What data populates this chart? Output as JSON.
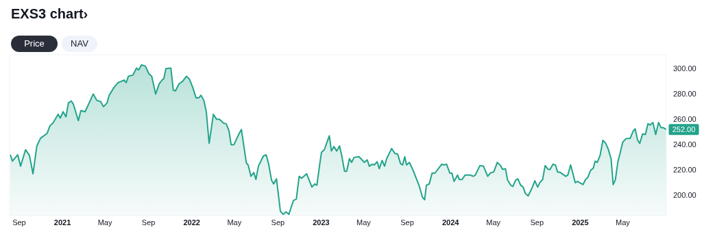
{
  "chart_data": {
    "type": "area",
    "title": "EXS3 chart›",
    "annotations": [
      "Price",
      "NAV",
      {
        "text": "252.00",
        "x": "2025-08-31",
        "y": 252
      }
    ],
    "x": [
      "2020-08-07",
      "2020-08-13",
      "2020-08-28",
      "2020-09-05",
      "2020-09-19",
      "2020-09-30",
      "2020-10-10",
      "2020-10-21",
      "2020-10-31",
      "2020-11-19",
      "2020-11-27",
      "2020-12-05",
      "2020-12-20",
      "2020-12-26",
      "2021-01-03",
      "2021-01-11",
      "2021-01-18",
      "2021-01-26",
      "2021-02-01",
      "2021-02-15",
      "2021-02-22",
      "2021-03-06",
      "2021-03-29",
      "2021-04-08",
      "2021-04-19",
      "2021-04-27",
      "2021-05-07",
      "2021-05-13",
      "2021-05-26",
      "2021-06-07",
      "2021-06-16",
      "2021-06-24",
      "2021-06-30",
      "2021-07-06",
      "2021-07-19",
      "2021-07-29",
      "2021-08-04",
      "2021-08-12",
      "2021-08-23",
      "2021-09-02",
      "2021-09-10",
      "2021-09-21",
      "2021-10-01",
      "2021-10-09",
      "2021-10-14",
      "2021-10-20",
      "2021-11-03",
      "2021-11-10",
      "2021-11-16",
      "2021-11-26",
      "2021-12-06",
      "2021-12-17",
      "2021-12-25",
      "2022-01-04",
      "2022-01-13",
      "2022-01-21",
      "2022-01-27",
      "2022-02-04",
      "2022-02-11",
      "2022-02-19",
      "2022-03-03",
      "2022-03-12",
      "2022-03-20",
      "2022-04-01",
      "2022-04-08",
      "2022-04-16",
      "2022-04-22",
      "2022-04-30",
      "2022-05-15",
      "2022-05-21",
      "2022-06-04",
      "2022-06-09",
      "2022-06-17",
      "2022-06-25",
      "2022-07-01",
      "2022-07-08",
      "2022-07-22",
      "2022-07-30",
      "2022-08-06",
      "2022-08-14",
      "2022-08-20",
      "2022-08-28",
      "2022-09-08",
      "2022-09-16",
      "2022-09-24",
      "2022-10-02",
      "2022-10-15",
      "2022-10-23",
      "2022-10-31",
      "2022-11-07",
      "2022-11-21",
      "2022-12-06",
      "2022-12-14",
      "2022-12-20",
      "2022-12-28",
      "2023-01-02",
      "2023-01-10",
      "2023-01-24",
      "2023-01-30",
      "2023-02-06",
      "2023-02-14",
      "2023-02-22",
      "2023-02-28",
      "2023-03-08",
      "2023-03-14",
      "2023-03-22",
      "2023-03-28",
      "2023-04-04",
      "2023-04-18",
      "2023-05-03",
      "2023-05-11",
      "2023-05-17",
      "2023-05-25",
      "2023-05-31",
      "2023-06-08",
      "2023-06-14",
      "2023-06-22",
      "2023-06-29",
      "2023-07-05",
      "2023-07-19",
      "2023-07-28",
      "2023-08-05",
      "2023-08-13",
      "2023-08-19",
      "2023-08-25",
      "2023-08-30",
      "2023-09-07",
      "2023-09-17",
      "2023-10-04",
      "2023-10-14",
      "2023-10-20",
      "2023-10-25",
      "2023-11-02",
      "2023-11-10",
      "2023-11-18",
      "2023-12-07",
      "2023-12-13",
      "2023-12-21",
      "2023-12-30",
      "2024-01-05",
      "2024-01-11",
      "2024-01-21",
      "2024-01-26",
      "2024-02-03",
      "2024-02-11",
      "2024-02-19",
      "2024-02-26",
      "2024-03-05",
      "2024-03-11",
      "2024-03-24",
      "2024-04-03",
      "2024-04-15",
      "2024-04-22",
      "2024-05-02",
      "2024-05-12",
      "2024-05-21",
      "2024-05-27",
      "2024-06-04",
      "2024-06-10",
      "2024-06-19",
      "2024-06-25",
      "2024-07-03",
      "2024-07-09",
      "2024-07-17",
      "2024-07-24",
      "2024-07-30",
      "2024-08-07",
      "2024-08-15",
      "2024-08-20",
      "2024-08-26",
      "2024-09-03",
      "2024-09-09",
      "2024-09-17",
      "2024-09-24",
      "2024-10-02",
      "2024-10-08",
      "2024-10-16",
      "2024-10-23",
      "2024-10-29",
      "2024-11-06",
      "2024-11-21",
      "2024-11-27",
      "2024-12-05",
      "2024-12-18",
      "2024-12-24",
      "2025-01-09",
      "2025-01-16",
      "2025-01-22",
      "2025-01-30",
      "2025-02-07",
      "2025-02-12",
      "2025-02-18",
      "2025-02-26",
      "2025-03-06",
      "2025-03-14",
      "2025-03-21",
      "2025-03-29",
      "2025-04-04",
      "2025-04-10",
      "2025-04-17",
      "2025-04-25",
      "2025-05-01",
      "2025-05-09",
      "2025-05-16",
      "2025-05-22",
      "2025-05-30",
      "2025-06-05",
      "2025-06-12",
      "2025-06-18",
      "2025-06-26",
      "2025-07-04",
      "2025-07-11",
      "2025-07-17",
      "2025-07-25",
      "2025-08-02",
      "2025-08-10",
      "2025-08-17",
      "2025-08-23",
      "2025-08-31"
    ],
    "series": [
      {
        "color": "#22a38a",
        "values": [
          232,
          227,
          232,
          223,
          236,
          231.5,
          217,
          239,
          245,
          249,
          255,
          257,
          264,
          261,
          266,
          262,
          273,
          274.5,
          272,
          259,
          267,
          266,
          280,
          275,
          274,
          270,
          273,
          279,
          285,
          289,
          290,
          291,
          289,
          294,
          295,
          300.5,
          299,
          303,
          302,
          296,
          294,
          280,
          288,
          291,
          292,
          300,
          300.5,
          283,
          282.5,
          288,
          290,
          294,
          292,
          285,
          277,
          277,
          279,
          275,
          266,
          241,
          264,
          260,
          260,
          257,
          256.5,
          251,
          240,
          240,
          249,
          252,
          225.5,
          224,
          215,
          218,
          212.5,
          223,
          231,
          232,
          224.5,
          212,
          209,
          213,
          187.5,
          185,
          187,
          185,
          196,
          197,
          215,
          213.5,
          217,
          206.5,
          209,
          208,
          224.5,
          234,
          236,
          247,
          235,
          238.5,
          235,
          239,
          231.5,
          219,
          219,
          229,
          226,
          230,
          230.5,
          226,
          228,
          223,
          224.5,
          224,
          226.5,
          221,
          227.5,
          223,
          229,
          237,
          233,
          232.5,
          225,
          224,
          230.5,
          224,
          226,
          220,
          208,
          198.5,
          196.5,
          208,
          209,
          217.5,
          217.5,
          224.5,
          224,
          224.5,
          217.5,
          217.5,
          211,
          216,
          212.5,
          212.5,
          216,
          216,
          216,
          215,
          216,
          223.5,
          223,
          215,
          217.5,
          218.5,
          226,
          223.5,
          220.5,
          221,
          212,
          208,
          207,
          212,
          213,
          208,
          206.5,
          201.5,
          199.5,
          204,
          207,
          211.5,
          206.5,
          210,
          212.5,
          223.5,
          220.5,
          220.5,
          224.5,
          224,
          218.5,
          218,
          215,
          216,
          224,
          210,
          211,
          208.5,
          212.5,
          214,
          219.5,
          221.5,
          227,
          226,
          231.5,
          243.5,
          241,
          236.5,
          229,
          208.5,
          212,
          226,
          235,
          242,
          244.5,
          245,
          245,
          250.5,
          252.5,
          243.5,
          241,
          248.5,
          248,
          256.5,
          255.5,
          257.5,
          248,
          257.5,
          253.5,
          253.5,
          252
        ]
      }
    ],
    "xlim": [
      "2020-08-05",
      "2025-09-01"
    ],
    "xticks": [
      {
        "value": "2020-09-01",
        "label": "Sep"
      },
      {
        "value": "2021-01-01",
        "label": "2021"
      },
      {
        "value": "2021-05-01",
        "label": "May"
      },
      {
        "value": "2021-09-01",
        "label": "Sep"
      },
      {
        "value": "2022-01-01",
        "label": "2022"
      },
      {
        "value": "2022-05-01",
        "label": "May"
      },
      {
        "value": "2022-09-01",
        "label": "Sep"
      },
      {
        "value": "2023-01-01",
        "label": "2023"
      },
      {
        "value": "2023-05-01",
        "label": "May"
      },
      {
        "value": "2023-09-01",
        "label": "Sep"
      },
      {
        "value": "2024-01-01",
        "label": "2024"
      },
      {
        "value": "2024-05-01",
        "label": "May"
      },
      {
        "value": "2024-09-01",
        "label": "Sep"
      },
      {
        "value": "2025-01-01",
        "label": "2025"
      },
      {
        "value": "2025-05-01",
        "label": "May"
      }
    ],
    "ylim": [
      184,
      311
    ],
    "yticks": [
      {
        "value": 200,
        "label": "200.00"
      },
      {
        "value": 220,
        "label": "220.00"
      },
      {
        "value": 240,
        "label": "240.00"
      },
      {
        "value": 260,
        "label": "260.00"
      },
      {
        "value": 280,
        "label": "280.00"
      },
      {
        "value": 300,
        "label": "300.00"
      }
    ]
  }
}
